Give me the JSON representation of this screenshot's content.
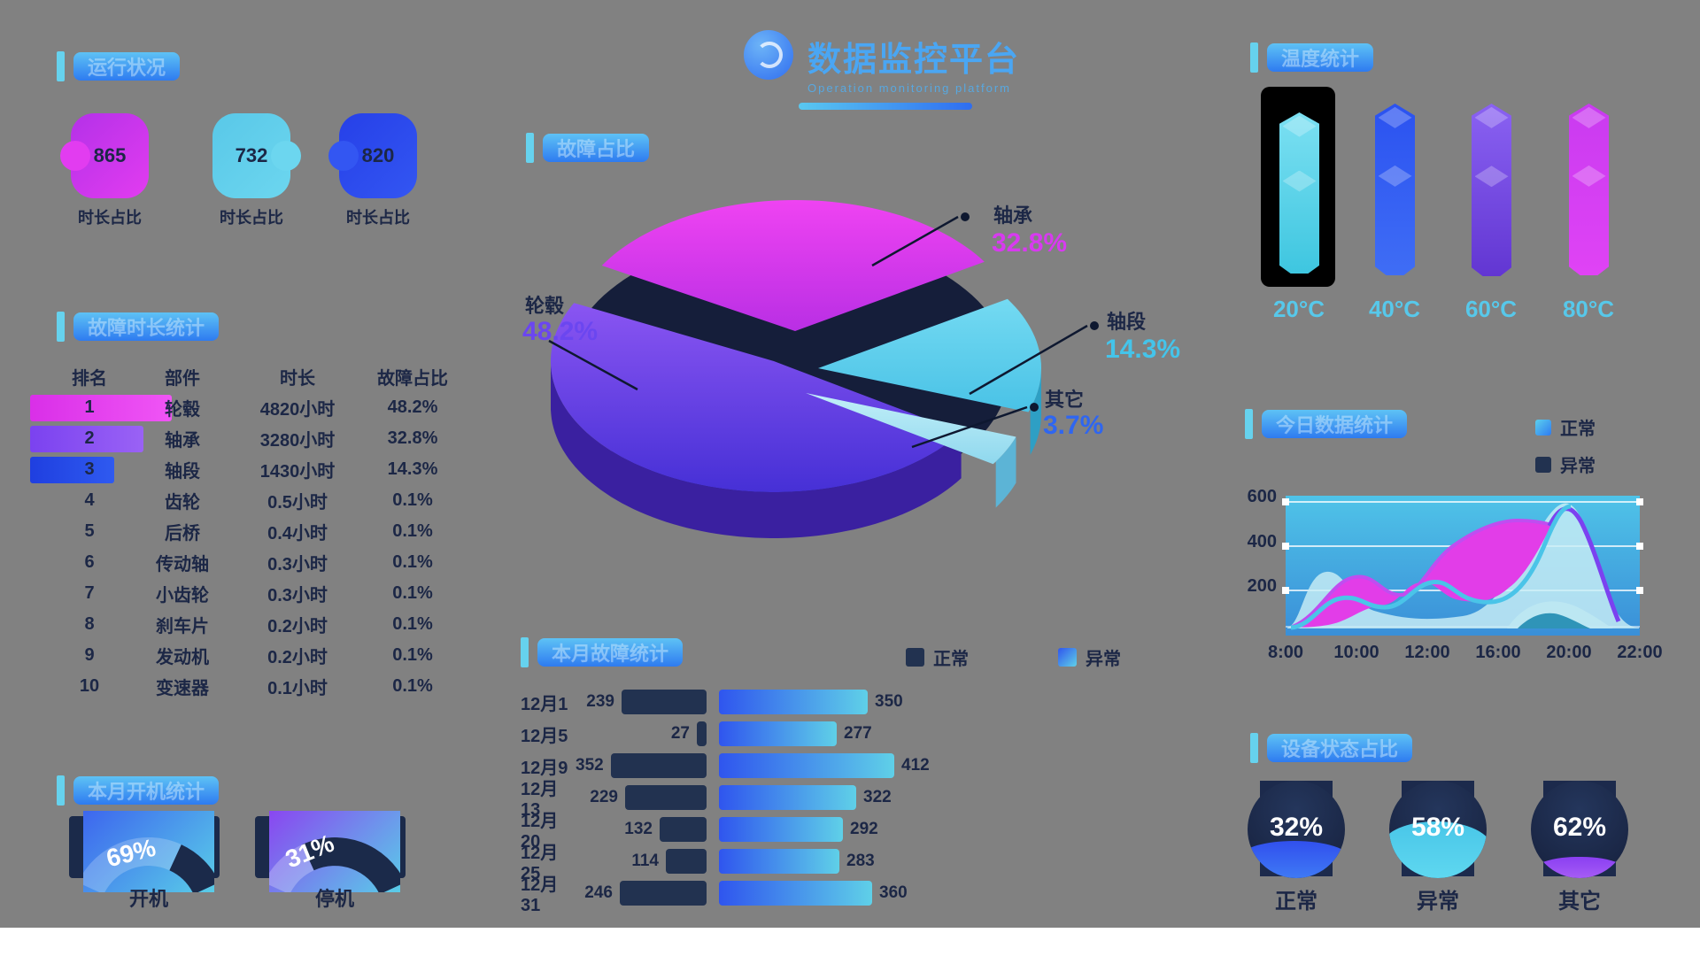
{
  "colors": {
    "accent_cyan": "#66d2ee",
    "pill_gradient": [
      "#5ec2f5",
      "#2e7bf0"
    ],
    "navy_text": "#1c2746",
    "magenta": "#e23cf0",
    "cyan": "#5fd0e8",
    "blue": "#2f55ee",
    "purple": "#7b42f0"
  },
  "header": {
    "title": "数据监控平台",
    "subtitle": "Operation monitoring platform"
  },
  "status_cards": {
    "title": "运行状况",
    "cards": [
      {
        "value": "865",
        "label": "时长占比",
        "color1": "#b431e8",
        "color2": "#e23cf0"
      },
      {
        "value": "732",
        "label": "时长占比",
        "color1": "#59c8e8",
        "color2": "#6cd6ef"
      },
      {
        "value": "820",
        "label": "时长占比",
        "color1": "#2640e8",
        "color2": "#3356f2"
      }
    ]
  },
  "rank_table": {
    "title": "故障时长统计",
    "headers": [
      "排名",
      "部件",
      "时长",
      "故障占比"
    ],
    "rows": [
      {
        "rank": "1",
        "name": "轮毂",
        "hours": "4820小时",
        "pct": "48.2%"
      },
      {
        "rank": "2",
        "name": "轴承",
        "hours": "3280小时",
        "pct": "32.8%"
      },
      {
        "rank": "3",
        "name": "轴段",
        "hours": "1430小时",
        "pct": "14.3%"
      },
      {
        "rank": "4",
        "name": "齿轮",
        "hours": "0.5小时",
        "pct": "0.1%"
      },
      {
        "rank": "5",
        "name": "后桥",
        "hours": "0.4小时",
        "pct": "0.1%"
      },
      {
        "rank": "6",
        "name": "传动轴",
        "hours": "0.3小时",
        "pct": "0.1%"
      },
      {
        "rank": "7",
        "name": "小齿轮",
        "hours": "0.3小时",
        "pct": "0.1%"
      },
      {
        "rank": "8",
        "name": "刹车片",
        "hours": "0.2小时",
        "pct": "0.1%"
      },
      {
        "rank": "9",
        "name": "发动机",
        "hours": "0.2小时",
        "pct": "0.1%"
      },
      {
        "rank": "10",
        "name": "变速器",
        "hours": "0.1小时",
        "pct": "0.1%"
      }
    ]
  },
  "month_gauges": {
    "title": "本月开机统计",
    "items": [
      {
        "pct": "69%",
        "label": "开机"
      },
      {
        "pct": "31%",
        "label": "停机"
      }
    ]
  },
  "pie": {
    "title": "故障占比",
    "slices": [
      {
        "name": "轴承",
        "value": 32.8,
        "display": "32.8%",
        "pct_color": "#d83af0",
        "top1": "#ef43f2",
        "top2": "#b92fe4",
        "side": "#8c27c8"
      },
      {
        "name": "轴段",
        "value": 14.3,
        "display": "14.3%",
        "pct_color": "#44c4ea",
        "top1": "#74daf2",
        "top2": "#49c2e6",
        "side": "#2e9fc4"
      },
      {
        "name": "其它",
        "value": 3.7,
        "display": "3.7%",
        "pct_color": "#2f66f0",
        "top1": "#c2eff8",
        "top2": "#8fd8ee",
        "side": "#5cb4d6"
      },
      {
        "name": "轮毂",
        "value": 48.2,
        "display": "48.2%",
        "pct_color": "#6b46f0",
        "top1": "#8a55f2",
        "top2": "#4630d6",
        "side": "#3a20a0"
      }
    ]
  },
  "fault_bars": {
    "title": "本月故障统计",
    "legend": [
      {
        "label": "正常",
        "type": "dark"
      },
      {
        "label": "异常",
        "type": "gradient"
      }
    ],
    "rows": [
      {
        "date": "12月1",
        "normal": 239,
        "abnormal": 350
      },
      {
        "date": "12月5",
        "normal": 27,
        "abnormal": 277
      },
      {
        "date": "12月9",
        "normal": 352,
        "abnormal": 412
      },
      {
        "date": "12月13",
        "normal": 229,
        "abnormal": 322
      },
      {
        "date": "12月20",
        "normal": 132,
        "abnormal": 292
      },
      {
        "date": "12月25",
        "normal": 114,
        "abnormal": 283
      },
      {
        "date": "12月31",
        "normal": 246,
        "abnormal": 360
      }
    ]
  },
  "temperature": {
    "title": "温度统计",
    "bars": [
      {
        "label": "20°C",
        "c1": "#7ce0f2",
        "c2": "#3ec6e0"
      },
      {
        "label": "40°C",
        "c1": "#2b52f0",
        "c2": "#3f6df5"
      },
      {
        "label": "60°C",
        "c1": "#8a62f2",
        "c2": "#6236d2"
      },
      {
        "label": "80°C",
        "c1": "#c93bf0",
        "c2": "#e043f5"
      }
    ]
  },
  "area": {
    "title": "今日数据统计",
    "legend": [
      {
        "label": "正常",
        "type": "gradient"
      },
      {
        "label": "异常",
        "type": "dark"
      }
    ],
    "y_ticks": [
      "600",
      "400",
      "200"
    ],
    "x_ticks": [
      "8:00",
      "10:00",
      "12:00",
      "16:00",
      "20:00",
      "22:00"
    ]
  },
  "liquid_gauges": {
    "title": "设备状态占比",
    "items": [
      {
        "pct": "32%",
        "label": "正常",
        "c1": "#3150ee",
        "c2": "#3f7bf5",
        "fill": 44
      },
      {
        "pct": "58%",
        "label": "异常",
        "c1": "#49c6e8",
        "c2": "#5fd8f0",
        "fill": 66
      },
      {
        "pct": "62%",
        "label": "其它",
        "c1": "#8a3ff2",
        "c2": "#a85ff5",
        "fill": 26
      }
    ]
  },
  "chart_data": [
    {
      "type": "pie",
      "title": "故障占比",
      "categories": [
        "轴承",
        "轴段",
        "其它",
        "轮毂"
      ],
      "values": [
        32.8,
        14.3,
        3.7,
        48.2
      ],
      "unit": "%"
    },
    {
      "type": "table",
      "title": "故障时长统计",
      "columns": [
        "排名",
        "部件",
        "时长",
        "故障占比"
      ],
      "rows": [
        [
          1,
          "轮毂",
          "4820小时",
          "48.2%"
        ],
        [
          2,
          "轴承",
          "3280小时",
          "32.8%"
        ],
        [
          3,
          "轴段",
          "1430小时",
          "14.3%"
        ],
        [
          4,
          "齿轮",
          "0.5小时",
          "0.1%"
        ],
        [
          5,
          "后桥",
          "0.4小时",
          "0.1%"
        ],
        [
          6,
          "传动轴",
          "0.3小时",
          "0.1%"
        ],
        [
          7,
          "小齿轮",
          "0.3小时",
          "0.1%"
        ],
        [
          8,
          "刹车片",
          "0.2小时",
          "0.1%"
        ],
        [
          9,
          "发动机",
          "0.2小时",
          "0.1%"
        ],
        [
          10,
          "变速器",
          "0.1小时",
          "0.1%"
        ]
      ]
    },
    {
      "type": "bar",
      "title": "本月故障统计",
      "orientation": "horizontal-bidirectional",
      "categories": [
        "12月1",
        "12月5",
        "12月9",
        "12月13",
        "12月20",
        "12月25",
        "12月31"
      ],
      "series": [
        {
          "name": "正常",
          "values": [
            239,
            27,
            352,
            229,
            132,
            114,
            246
          ]
        },
        {
          "name": "异常",
          "values": [
            350,
            277,
            412,
            322,
            292,
            283,
            360
          ]
        }
      ]
    },
    {
      "type": "area",
      "title": "今日数据统计",
      "x": [
        "8:00",
        "10:00",
        "12:00",
        "16:00",
        "20:00",
        "22:00"
      ],
      "ylim": [
        0,
        600
      ],
      "series": [
        {
          "name": "正常",
          "values": [
            0,
            230,
            210,
            230,
            560,
            50
          ]
        },
        {
          "name": "异常",
          "values": [
            0,
            120,
            360,
            320,
            580,
            40
          ]
        }
      ],
      "legend_position": "top-right"
    },
    {
      "type": "bar",
      "title": "温度统计",
      "categories": [
        "20°C",
        "40°C",
        "60°C",
        "80°C"
      ],
      "values": [
        100,
        100,
        100,
        100
      ],
      "note": "decorative equal-height thermometer columns, first highlighted"
    },
    {
      "type": "pie",
      "title": "本月开机统计",
      "categories": [
        "开机",
        "停机"
      ],
      "values": [
        69,
        31
      ],
      "unit": "%"
    },
    {
      "type": "pie",
      "title": "设备状态占比",
      "categories": [
        "正常",
        "异常",
        "其它"
      ],
      "values": [
        32,
        58,
        62
      ],
      "unit": "%"
    }
  ]
}
